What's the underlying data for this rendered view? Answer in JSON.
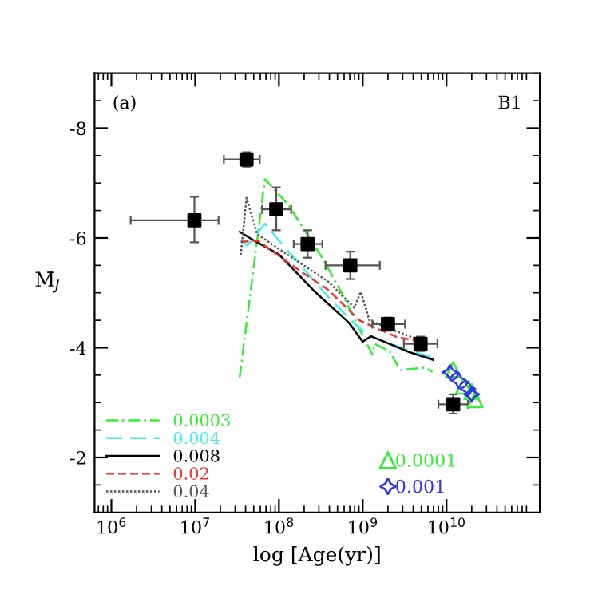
{
  "chart_data": {
    "type": "line",
    "xlabel": "log [Age(yr)]",
    "ylabel": "M̄$_{J}$",
    "log": "x",
    "xlim": [
      630000,
      130000000000
    ],
    "xticks": [
      {
        "value": 1000000,
        "label": "10$^{6}$"
      },
      {
        "value": 10000000,
        "label": "10$^{7}$"
      },
      {
        "value": 100000000,
        "label": "10$^{8}$"
      },
      {
        "value": 1000000000,
        "label": "10$^{9}$"
      },
      {
        "value": 10000000000,
        "label": "10$^{10}$"
      }
    ],
    "ylim": [
      -1,
      -9
    ],
    "yticks": [
      {
        "value": -8,
        "label": "-8"
      },
      {
        "value": -6,
        "label": "-6"
      },
      {
        "value": -4,
        "label": "-4"
      },
      {
        "value": -2,
        "label": "-2"
      }
    ],
    "grid": false,
    "legend": "bottom left",
    "annotations": [
      "(a)",
      "B1"
    ],
    "series": [
      {
        "name": "0.0003",
        "color": "#33ee33",
        "line_style": "dashdot",
        "x": [
          34000000,
          68000000,
          130000000,
          340000000,
          560000000,
          1050000000,
          1300000000,
          1400000000,
          2100000000,
          2800000000,
          5600000000,
          6800000000
        ],
        "values": [
          -3.46,
          -7.07,
          -6.6,
          -5.6,
          -5.0,
          -4.16,
          -3.88,
          -4.07,
          -3.93,
          -3.59,
          -3.64,
          -3.56
        ]
      },
      {
        "name": "0.004",
        "color": "#44eeee",
        "line_style": "longdashed",
        "x": [
          35000000,
          42000000,
          68000000,
          110000000,
          390000000,
          790000000,
          1100000000,
          1260000000,
          3600000000,
          6900000000
        ],
        "values": [
          -5.97,
          -5.86,
          -6.26,
          -5.88,
          -4.92,
          -4.45,
          -4.25,
          -4.2,
          -3.95,
          -3.82
        ]
      },
      {
        "name": "0.008",
        "color": "#000000",
        "line_style": "solid",
        "x": [
          34000000,
          55000000,
          100000000,
          260000000,
          680000000,
          1000000000,
          1260000000,
          3600000000,
          6900000000
        ],
        "values": [
          -6.11,
          -5.92,
          -5.7,
          -5.04,
          -4.46,
          -4.11,
          -4.21,
          -3.92,
          -3.78
        ]
      },
      {
        "name": "0.02",
        "color": "#ee3333",
        "line_style": "dashed",
        "x": [
          35000000,
          56000000,
          160000000,
          390000000,
          910000000,
          1260000000,
          2500000000,
          5200000000
        ],
        "values": [
          -5.93,
          -5.95,
          -5.45,
          -5.05,
          -4.5,
          -4.4,
          -4.2,
          -4.1
        ]
      },
      {
        "name": "0.04",
        "color": "#555555",
        "line_style": "dotted",
        "x": [
          35000000,
          41000000,
          55000000,
          100000000,
          390000000,
          790000000,
          950000000,
          1200000000,
          2500000000,
          5200000000
        ],
        "values": [
          -5.69,
          -6.73,
          -6.07,
          -5.8,
          -5.2,
          -4.73,
          -5.02,
          -4.5,
          -4.3,
          -4.12
        ]
      },
      {
        "name": "0.0001",
        "type": "scatter",
        "marker": "triangle",
        "color": "#33ee33",
        "x": [
          12000000000,
          16000000000,
          20000000000,
          22000000000
        ],
        "values": [
          -3.6,
          -3.3,
          -3.2,
          -3.05
        ]
      },
      {
        "name": "0.001",
        "type": "scatter",
        "marker": "star",
        "color": "#3333ee",
        "x": [
          11000000000,
          14000000000,
          18000000000,
          20000000000
        ],
        "values": [
          -3.55,
          -3.4,
          -3.25,
          -3.15
        ]
      },
      {
        "type": "scatter",
        "marker": "square",
        "color": "#000000",
        "x": [
          9800000,
          41000000,
          93000000,
          220000000,
          710000000,
          2000000000,
          4900000000,
          12000000000
        ],
        "values": [
          -6.32,
          -7.43,
          -6.52,
          -5.89,
          -5.5,
          -4.43,
          -4.07,
          -2.97
        ],
        "errors": [
          [
            -6.75,
            -5.92
          ],
          [
            -7.56,
            -7.3
          ],
          [
            -6.92,
            -6.14
          ],
          [
            -6.14,
            -5.64
          ],
          [
            -5.75,
            -5.25
          ],
          [
            -4.55,
            -4.31
          ],
          [
            -4.2,
            -3.94
          ],
          [
            -3.15,
            -2.8
          ]
        ],
        "xerrors": [
          [
            1700000,
            19000000
          ],
          [
            22000000,
            59000000
          ],
          [
            63000000,
            140000000
          ],
          [
            150000000,
            330000000
          ],
          [
            360000000,
            1600000000
          ],
          [
            1300000000,
            3200000000
          ],
          [
            3100000000,
            7800000000
          ],
          [
            8000000000,
            18000000000
          ]
        ]
      }
    ]
  }
}
